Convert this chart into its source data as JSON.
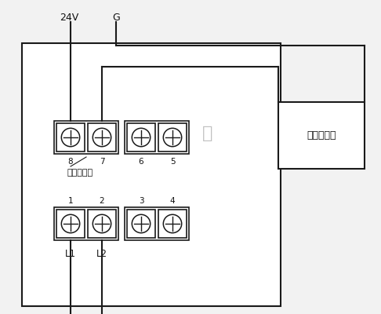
{
  "bg_color": "#f2f2f2",
  "line_color": "#1a1a1a",
  "text_color": "#111111",
  "watermark_color": "#c0c0c0",
  "alarm_label": "声光或警铃",
  "watermark": "特",
  "label_24v": "24V",
  "label_g": "G",
  "label_press": "按下时闭合",
  "label_L1": "L1",
  "label_L2": "L2",
  "top_nums": [
    "8",
    "7",
    "6",
    "5"
  ],
  "bot_nums": [
    "1",
    "2",
    "3",
    "4"
  ]
}
